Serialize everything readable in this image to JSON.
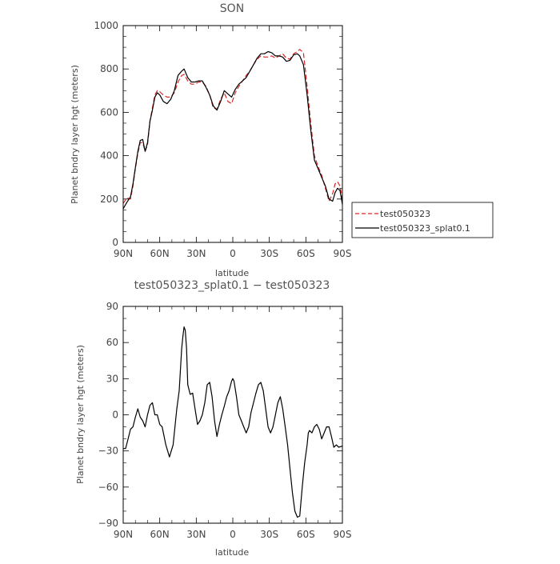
{
  "chart_data": [
    {
      "type": "line",
      "title": "SON",
      "xlabel": "latitude",
      "ylabel": "Planet bndry layer hgt (meters)",
      "xlim": [
        -90,
        90
      ],
      "ylim": [
        0,
        1000
      ],
      "x_ticks": [
        -90,
        -60,
        -30,
        0,
        30,
        60,
        90
      ],
      "x_tick_labels": [
        "90N",
        "60N",
        "30N",
        "0",
        "30S",
        "60S",
        "90S"
      ],
      "y_ticks": [
        0,
        200,
        400,
        600,
        800,
        1000
      ],
      "y_tick_labels": [
        "0",
        "200",
        "400",
        "600",
        "800",
        "1000"
      ],
      "legend_position": "right",
      "series": [
        {
          "name": "test050323",
          "color": "#d62728",
          "style": "dashed",
          "x": [
            -90,
            -87,
            -84,
            -82,
            -80,
            -78,
            -76,
            -74,
            -72,
            -70,
            -68,
            -66,
            -64,
            -62,
            -60,
            -57,
            -54,
            -51,
            -48,
            -45,
            -42,
            -40,
            -37,
            -34,
            -31,
            -28,
            -25,
            -22,
            -19,
            -16,
            -13,
            -10,
            -7,
            -4,
            -1,
            2,
            5,
            8,
            11,
            14,
            17,
            20,
            23,
            26,
            29,
            32,
            35,
            38,
            41,
            44,
            47,
            50,
            53,
            55,
            58,
            61,
            64,
            67,
            70,
            73,
            76,
            79,
            82,
            84,
            86,
            88,
            90
          ],
          "y": [
            180,
            205,
            200,
            260,
            340,
            410,
            460,
            460,
            420,
            450,
            560,
            620,
            680,
            700,
            695,
            680,
            670,
            670,
            690,
            740,
            770,
            775,
            745,
            730,
            730,
            740,
            740,
            720,
            680,
            620,
            615,
            660,
            690,
            650,
            640,
            690,
            720,
            745,
            770,
            790,
            820,
            845,
            860,
            855,
            855,
            860,
            850,
            860,
            870,
            850,
            845,
            870,
            880,
            890,
            875,
            720,
            550,
            400,
            350,
            310,
            250,
            190,
            225,
            270,
            280,
            260,
            200
          ]
        },
        {
          "name": "test050323_splat0.1",
          "color": "#000000",
          "style": "solid",
          "x": [
            -90,
            -87,
            -84,
            -82,
            -80,
            -78,
            -76,
            -74,
            -72,
            -70,
            -68,
            -66,
            -64,
            -62,
            -60,
            -57,
            -54,
            -51,
            -48,
            -45,
            -42,
            -40,
            -37,
            -34,
            -31,
            -28,
            -25,
            -22,
            -19,
            -16,
            -13,
            -10,
            -7,
            -4,
            -1,
            2,
            5,
            8,
            11,
            14,
            17,
            20,
            23,
            26,
            29,
            32,
            35,
            38,
            41,
            44,
            47,
            50,
            53,
            55,
            58,
            61,
            64,
            67,
            70,
            73,
            76,
            79,
            82,
            84,
            86,
            88,
            90
          ],
          "y": [
            155,
            185,
            210,
            270,
            345,
            420,
            470,
            475,
            420,
            460,
            560,
            610,
            670,
            690,
            680,
            650,
            640,
            660,
            700,
            770,
            790,
            800,
            760,
            740,
            740,
            745,
            745,
            715,
            680,
            630,
            610,
            650,
            700,
            685,
            670,
            705,
            730,
            745,
            760,
            790,
            820,
            850,
            870,
            870,
            880,
            875,
            860,
            860,
            855,
            835,
            840,
            865,
            870,
            860,
            820,
            680,
            520,
            380,
            340,
            300,
            260,
            200,
            190,
            230,
            250,
            240,
            175
          ]
        }
      ]
    },
    {
      "type": "line",
      "title": "test050323_splat0.1 − test050323",
      "xlabel": "latitude",
      "ylabel": "Planet bndry layer hgt (meters)",
      "xlim": [
        -90,
        90
      ],
      "ylim": [
        -90,
        90
      ],
      "x_ticks": [
        -90,
        -60,
        -30,
        0,
        30,
        60,
        90
      ],
      "x_tick_labels": [
        "90N",
        "60N",
        "30N",
        "0",
        "30S",
        "60S",
        "90S"
      ],
      "y_ticks": [
        -90,
        -60,
        -30,
        0,
        30,
        60,
        90
      ],
      "y_tick_labels": [
        "−90",
        "−60",
        "−30",
        "0",
        "30",
        "60",
        "90"
      ],
      "series": [
        {
          "color": "#000000",
          "style": "solid",
          "x": [
            -90,
            -88,
            -86,
            -84,
            -82,
            -80,
            -78,
            -76,
            -74,
            -72,
            -70,
            -68,
            -66,
            -64,
            -62,
            -60,
            -58,
            -55,
            -52,
            -49,
            -46,
            -44,
            -42,
            -41,
            -40,
            -39,
            -38,
            -37,
            -35,
            -33,
            -31,
            -29,
            -27,
            -25,
            -23,
            -21,
            -19,
            -17,
            -15,
            -13,
            -11,
            -9,
            -7,
            -5,
            -3,
            -1,
            0,
            1,
            3,
            5,
            7,
            9,
            11,
            13,
            15,
            17,
            19,
            21,
            23,
            25,
            27,
            29,
            31,
            33,
            35,
            37,
            39,
            41,
            43,
            45,
            47,
            49,
            51,
            53,
            55,
            57,
            59,
            61,
            62,
            63,
            65,
            67,
            69,
            71,
            73,
            75,
            77,
            79,
            81,
            83,
            85,
            87,
            90
          ],
          "y": [
            -28,
            -28,
            -20,
            -12,
            -10,
            -2,
            5,
            -2,
            -5,
            -10,
            0,
            8,
            10,
            0,
            0,
            -8,
            -10,
            -25,
            -35,
            -25,
            5,
            20,
            55,
            65,
            73,
            70,
            55,
            25,
            17,
            18,
            5,
            -8,
            -5,
            0,
            10,
            25,
            27,
            15,
            -5,
            -18,
            -8,
            0,
            7,
            15,
            20,
            28,
            30,
            28,
            15,
            0,
            -5,
            -10,
            -15,
            -10,
            2,
            10,
            18,
            25,
            27,
            20,
            5,
            -10,
            -15,
            -10,
            0,
            10,
            15,
            5,
            -10,
            -25,
            -45,
            -65,
            -80,
            -85,
            -84,
            -60,
            -40,
            -25,
            -15,
            -13,
            -15,
            -10,
            -8,
            -12,
            -20,
            -15,
            -10,
            -10,
            -18,
            -27,
            -25,
            -27,
            -26
          ]
        }
      ]
    }
  ]
}
